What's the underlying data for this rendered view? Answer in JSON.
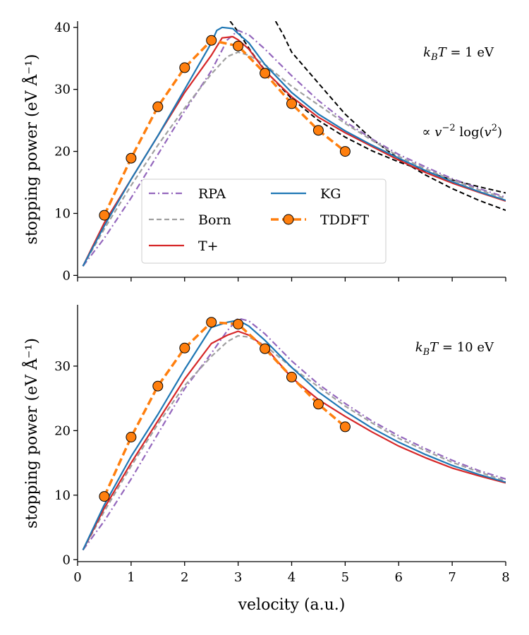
{
  "chart_data": [
    {
      "type": "line",
      "panel": "top",
      "ylabel": "stopping power (eV Å⁻¹)",
      "xlabel": "",
      "xlim": [
        0,
        8
      ],
      "ylim": [
        -0.3,
        41
      ],
      "xticks": [
        "0",
        "1",
        "2",
        "3",
        "4",
        "5",
        "6",
        "7",
        "8"
      ],
      "yticks": [
        "0",
        "10",
        "20",
        "30",
        "40"
      ],
      "annotation": {
        "kb": "k",
        "sub": "B",
        "T": "T",
        "value": " = 1 eV"
      },
      "asymptote_label": {
        "prefix": "∝ ",
        "v": "v",
        "exp": "−2",
        "log": " log(",
        "v2": "v",
        "exp2": "2",
        "close": ")"
      },
      "series": [
        {
          "name": "RPA",
          "color": "#9467bd",
          "style": "dashdot",
          "x": [
            0.1,
            0.5,
            1.0,
            1.5,
            2.0,
            2.5,
            2.8,
            3.0,
            3.2,
            3.5,
            4.0,
            4.5,
            5.0,
            5.5,
            6.0,
            6.5,
            7.0,
            7.5,
            8.0
          ],
          "y": [
            1.5,
            6.0,
            12.5,
            19.5,
            26.5,
            33.0,
            38.0,
            39.5,
            38.8,
            36.5,
            32.2,
            28.2,
            24.8,
            22.0,
            19.5,
            17.5,
            15.6,
            14.0,
            12.6
          ]
        },
        {
          "name": "Born",
          "color": "#a0a0a0",
          "style": "dashed",
          "x": [
            0.1,
            0.5,
            1.0,
            1.5,
            2.0,
            2.5,
            2.8,
            3.0,
            3.2,
            3.5,
            4.0,
            4.5,
            5.0,
            5.5,
            6.0,
            6.5,
            7.0,
            7.5,
            8.0
          ],
          "y": [
            1.5,
            7.5,
            14.5,
            21.0,
            27.0,
            32.5,
            35.3,
            36.0,
            35.5,
            34.0,
            30.5,
            27.5,
            24.5,
            21.8,
            19.2,
            17.2,
            15.4,
            13.8,
            12.4
          ]
        },
        {
          "name": "T+",
          "color": "#d62728",
          "style": "solid",
          "x": [
            0.1,
            0.5,
            1.0,
            1.5,
            2.0,
            2.5,
            2.7,
            2.9,
            3.0,
            3.2,
            3.5,
            4.0,
            4.5,
            5.0,
            5.5,
            6.0,
            6.5,
            7.0,
            7.5,
            8.0
          ],
          "y": [
            1.5,
            8.5,
            15.5,
            22.5,
            29.5,
            35.5,
            38.3,
            38.5,
            38.0,
            36.5,
            33.0,
            28.8,
            25.5,
            23.0,
            20.8,
            18.6,
            16.6,
            14.9,
            13.4,
            12.0
          ]
        },
        {
          "name": "KG",
          "color": "#1f77b4",
          "style": "solid",
          "x": [
            0.1,
            0.5,
            1.0,
            1.5,
            2.0,
            2.5,
            2.6,
            2.7,
            2.9,
            3.0,
            3.2,
            3.5,
            4.0,
            4.5,
            5.0,
            5.5,
            6.0,
            6.5,
            7.0,
            7.5,
            8.0
          ],
          "y": [
            1.5,
            8.0,
            15.5,
            22.5,
            30.0,
            37.5,
            39.5,
            40.0,
            39.8,
            39.0,
            37.5,
            34.0,
            29.5,
            26.0,
            23.3,
            21.0,
            18.9,
            16.9,
            15.1,
            13.5,
            12.1
          ]
        },
        {
          "name": "TDDFT",
          "color": "#ff7f0e",
          "style": "dashed-markers",
          "x": [
            0.5,
            1.0,
            1.5,
            2.0,
            2.5,
            3.0,
            3.5,
            4.0,
            4.5,
            5.0
          ],
          "y": [
            9.7,
            18.9,
            27.2,
            33.5,
            37.9,
            37.0,
            32.6,
            27.7,
            23.4,
            20.0
          ]
        }
      ],
      "asymptotes": [
        {
          "name": "asymptote-upper",
          "color": "#000000",
          "style": "dashed",
          "x": [
            2.85,
            3.0,
            3.25,
            3.5,
            4.0,
            4.5,
            5.0,
            5.5,
            6.0,
            6.5,
            7.0,
            7.5,
            8.0
          ],
          "y": [
            41.0,
            39.3,
            36.0,
            33.1,
            28.5,
            25.0,
            22.3,
            20.1,
            18.3,
            16.8,
            15.4,
            14.3,
            13.3
          ]
        },
        {
          "name": "asymptote-lower",
          "color": "#000000",
          "style": "dashed",
          "x": [
            3.7,
            3.85,
            4.0,
            4.5,
            5.0,
            5.5,
            6.0,
            6.5,
            7.0,
            7.5,
            8.0
          ],
          "y": [
            41.0,
            38.7,
            36.0,
            31.0,
            26.0,
            22.0,
            18.8,
            16.2,
            14.0,
            12.1,
            10.5
          ]
        }
      ],
      "legend": {
        "placement": "lower-center",
        "entries": [
          {
            "label": "RPA",
            "series": "RPA"
          },
          {
            "label": "KG",
            "series": "KG"
          },
          {
            "label": "Born",
            "series": "Born"
          },
          {
            "label": "TDDFT",
            "series": "TDDFT"
          },
          {
            "label": "T+",
            "series": "T+"
          }
        ]
      }
    },
    {
      "type": "line",
      "panel": "bottom",
      "ylabel": "stopping power (eV Å⁻¹)",
      "xlabel": "velocity (a.u.)",
      "xlim": [
        0,
        8
      ],
      "ylim": [
        -0.3,
        39.5
      ],
      "xticks": [
        "0",
        "1",
        "2",
        "3",
        "4",
        "5",
        "6",
        "7",
        "8"
      ],
      "yticks": [
        "0",
        "10",
        "20",
        "30"
      ],
      "annotation": {
        "kb": "k",
        "sub": "B",
        "T": "T",
        "value": " = 10 eV"
      },
      "series": [
        {
          "name": "RPA",
          "color": "#9467bd",
          "style": "dashdot",
          "x": [
            0.1,
            0.5,
            1.0,
            1.5,
            2.0,
            2.5,
            2.8,
            3.0,
            3.2,
            3.5,
            4.0,
            4.5,
            5.0,
            5.5,
            6.0,
            6.5,
            7.0,
            7.5,
            8.0
          ],
          "y": [
            1.5,
            6.0,
            12.5,
            19.5,
            26.5,
            32.0,
            35.5,
            37.4,
            37.0,
            35.0,
            30.8,
            27.2,
            24.2,
            21.5,
            19.2,
            17.2,
            15.4,
            13.8,
            12.5
          ]
        },
        {
          "name": "Born",
          "color": "#a0a0a0",
          "style": "dashed",
          "x": [
            0.1,
            0.5,
            1.0,
            1.5,
            2.0,
            2.5,
            2.8,
            3.0,
            3.2,
            3.5,
            4.0,
            4.5,
            5.0,
            5.5,
            6.0,
            6.5,
            7.0,
            7.5,
            8.0
          ],
          "y": [
            1.5,
            7.5,
            14.5,
            21.0,
            27.0,
            31.5,
            33.8,
            34.7,
            34.5,
            33.2,
            29.8,
            26.8,
            23.8,
            21.2,
            18.8,
            16.9,
            15.1,
            13.6,
            12.2
          ]
        },
        {
          "name": "T+",
          "color": "#d62728",
          "style": "solid",
          "x": [
            0.1,
            0.5,
            1.0,
            1.5,
            2.0,
            2.5,
            2.8,
            3.0,
            3.2,
            3.5,
            4.0,
            4.5,
            5.0,
            5.5,
            6.0,
            6.5,
            7.0,
            7.5,
            8.0
          ],
          "y": [
            1.5,
            8.0,
            15.0,
            21.5,
            28.0,
            33.5,
            34.8,
            35.4,
            34.8,
            33.0,
            28.2,
            24.8,
            22.2,
            19.8,
            17.6,
            15.8,
            14.2,
            13.0,
            11.9
          ]
        },
        {
          "name": "KG",
          "color": "#1f77b4",
          "style": "solid",
          "x": [
            0.1,
            0.5,
            1.0,
            1.5,
            2.0,
            2.5,
            2.8,
            3.0,
            3.2,
            3.5,
            4.0,
            4.5,
            5.0,
            5.5,
            6.0,
            6.5,
            7.0,
            7.5,
            8.0
          ],
          "y": [
            1.5,
            8.5,
            16.0,
            22.5,
            29.5,
            36.0,
            36.8,
            37.1,
            36.2,
            34.0,
            29.8,
            26.0,
            23.0,
            20.4,
            18.2,
            16.3,
            14.6,
            13.2,
            12.0
          ]
        },
        {
          "name": "TDDFT",
          "color": "#ff7f0e",
          "style": "dashed-markers",
          "x": [
            0.5,
            1.0,
            1.5,
            2.0,
            2.5,
            3.0,
            3.5,
            4.0,
            4.5,
            5.0
          ],
          "y": [
            9.8,
            19.0,
            26.9,
            32.8,
            36.8,
            36.5,
            32.7,
            28.3,
            24.1,
            20.6
          ]
        }
      ]
    }
  ]
}
